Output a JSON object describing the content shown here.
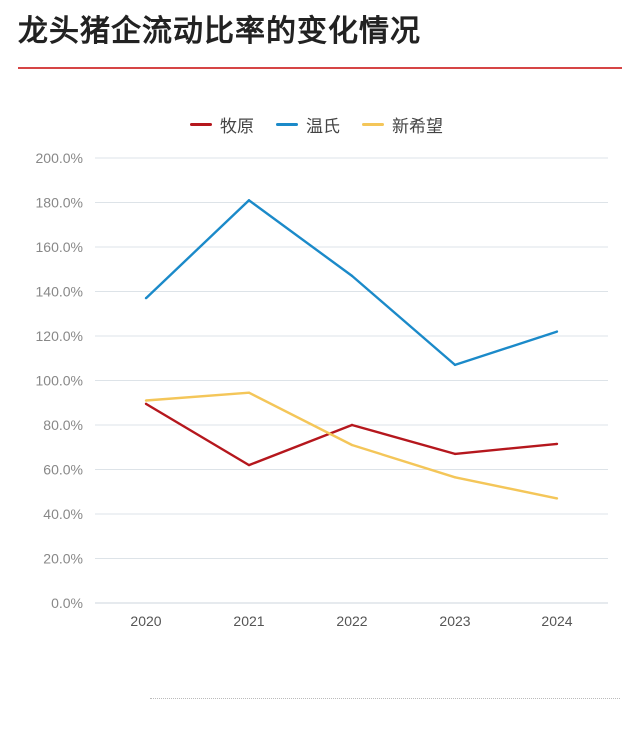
{
  "title": "龙头猪企流动比率的变化情况",
  "colors": {
    "title_rule": "#d64545",
    "grid": "#dde3e8"
  },
  "chart_data": {
    "type": "line",
    "x": [
      "2020",
      "2021",
      "2022",
      "2023",
      "2024"
    ],
    "ylim": [
      0,
      200
    ],
    "yticks": [
      "200.0%",
      "180.0%",
      "160.0%",
      "140.0%",
      "120.0%",
      "100.0%",
      "80.0%",
      "60.0%",
      "40.0%",
      "20.0%",
      "0.0%"
    ],
    "series": [
      {
        "name": "牧原",
        "color": "#b5171d",
        "values": [
          89.5,
          62,
          80,
          67,
          71.5
        ]
      },
      {
        "name": "温氏",
        "color": "#1b8ac9",
        "values": [
          137,
          181,
          147,
          107,
          122
        ]
      },
      {
        "name": "新希望",
        "color": "#f4c659",
        "values": [
          91,
          94.5,
          71,
          56.5,
          47
        ]
      }
    ],
    "legend": "top-center",
    "grid": true
  }
}
